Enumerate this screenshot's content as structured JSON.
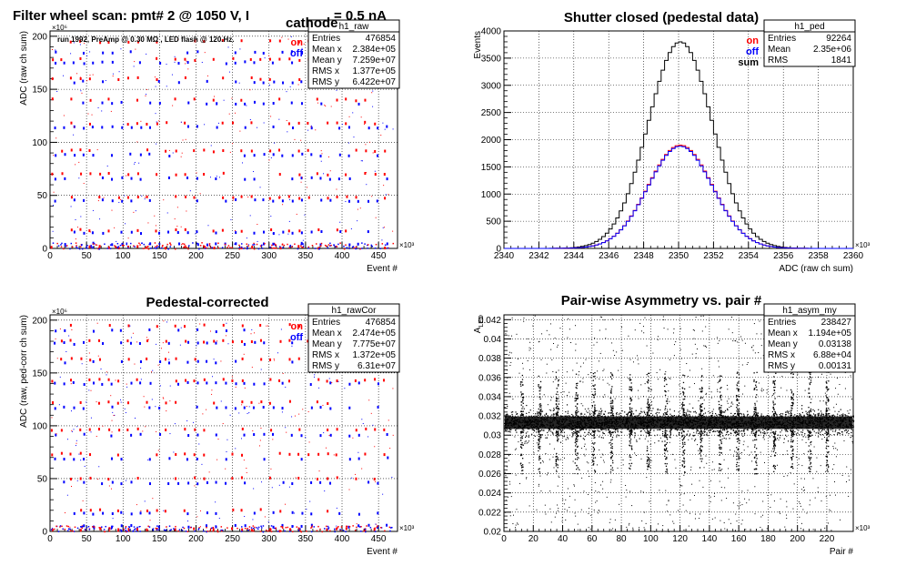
{
  "colors": {
    "on": "#ff0000",
    "off": "#0000ff",
    "sum": "#000000",
    "grid": "#000000"
  },
  "chart_data": [
    {
      "id": "raw",
      "type": "scatter",
      "title": "Filter wheel scan: pmt#   2 @  1050 V, I",
      "title_sub": "cathode",
      "title_tail": "= 0.5 nA",
      "note": "run 1992, PreAmp @ 0.30 MΩ , LED flash @  120.Hz.",
      "xlabel": "Event #",
      "ylabel": "ADC (raw ch sum)",
      "x_exp": "×10³",
      "y_exp": "×10⁶",
      "xlim": [
        0,
        476
      ],
      "ylim": [
        0,
        205
      ],
      "xticks": [
        0,
        50,
        100,
        150,
        200,
        250,
        300,
        350,
        400,
        450
      ],
      "yticks": [
        0,
        50,
        100,
        150,
        200
      ],
      "legend": [
        "on",
        "off"
      ],
      "stats": {
        "name": "h1_raw",
        "rows": [
          [
            "Entries",
            "476854"
          ],
          [
            "Mean x",
            "2.384e+05"
          ],
          [
            "Mean y",
            "7.259e+07"
          ],
          [
            "RMS x",
            "1.377e+05"
          ],
          [
            "RMS y",
            "6.422e+07"
          ]
        ]
      },
      "levels_on": [
        1,
        17,
        48,
        70,
        92,
        118,
        140,
        160,
        178,
        195
      ],
      "levels_off": [
        4,
        15,
        45,
        66,
        88,
        114,
        137,
        157,
        175,
        185
      ]
    },
    {
      "id": "ped",
      "type": "line",
      "title": "Shutter closed (pedestal data)",
      "xlabel": "ADC (raw ch sum)",
      "ylabel": "Events",
      "x_exp": "×10³",
      "xlim": [
        2340,
        2360
      ],
      "ylim": [
        0,
        4000
      ],
      "xticks": [
        2340,
        2342,
        2344,
        2346,
        2348,
        2350,
        2352,
        2354,
        2356,
        2358,
        2360
      ],
      "yticks": [
        0,
        500,
        1000,
        1500,
        2000,
        2500,
        3000,
        3500,
        4000
      ],
      "legend": [
        "on",
        "off",
        "sum"
      ],
      "stats": {
        "name": "h1_ped",
        "rows": [
          [
            "Entries",
            "92264"
          ],
          [
            "Mean",
            "2.35e+06"
          ],
          [
            "RMS",
            "1841"
          ]
        ]
      },
      "series": [
        {
          "name": "sum",
          "mean": 2350.1,
          "sigma": 1.84,
          "peak": 3800
        },
        {
          "name": "on",
          "mean": 2350.1,
          "sigma": 1.84,
          "peak": 1900
        },
        {
          "name": "off",
          "mean": 2350.1,
          "sigma": 1.84,
          "peak": 1880
        }
      ]
    },
    {
      "id": "rawcor",
      "type": "scatter",
      "title": "Pedestal-corrected",
      "xlabel": "Event #",
      "ylabel": "ADC (raw, ped-corr ch sum)",
      "x_exp": "×10³",
      "y_exp": "×10⁶",
      "xlim": [
        0,
        476
      ],
      "ylim": [
        0,
        205
      ],
      "xticks": [
        0,
        50,
        100,
        150,
        200,
        250,
        300,
        350,
        400,
        450
      ],
      "yticks": [
        0,
        50,
        100,
        150,
        200
      ],
      "legend": [
        "on",
        "off"
      ],
      "stats": {
        "name": "h1_rawCor",
        "rows": [
          [
            "Entries",
            "476854"
          ],
          [
            "Mean x",
            "2.474e+05"
          ],
          [
            "Mean y",
            "7.775e+07"
          ],
          [
            "RMS x",
            "1.372e+05"
          ],
          [
            "RMS y",
            "6.31e+07"
          ]
        ]
      },
      "levels_on": [
        2,
        20,
        50,
        73,
        96,
        122,
        143,
        163,
        180,
        195
      ],
      "levels_off": [
        5,
        17,
        46,
        69,
        91,
        117,
        140,
        160,
        178,
        190
      ]
    },
    {
      "id": "asym",
      "type": "scatter",
      "title": "Pair-wise Asymmetry vs. pair #",
      "xlabel": "Pair #",
      "ylabel": "A",
      "ylabel_sub": "LED",
      "x_exp": "×10³",
      "xlim": [
        0,
        238
      ],
      "ylim": [
        0.02,
        0.0425
      ],
      "xticks": [
        0,
        20,
        40,
        60,
        80,
        100,
        120,
        140,
        160,
        180,
        200,
        220
      ],
      "yticks": [
        0.02,
        0.022,
        0.024,
        0.026,
        0.028,
        0.03,
        0.032,
        0.034,
        0.036,
        0.038,
        0.04,
        0.042
      ],
      "stats": {
        "name": "h1_asym_my",
        "rows": [
          [
            "Entries",
            "238427"
          ],
          [
            "Mean x",
            "1.194e+05"
          ],
          [
            "Mean y",
            "0.03138"
          ],
          [
            "RMS x",
            "6.88e+04"
          ],
          [
            "RMS y",
            "0.00131"
          ]
        ]
      },
      "band_center": 0.0313,
      "band_halfwidth": 0.0011,
      "spike_pairs": [
        12,
        24,
        36,
        49,
        61,
        73,
        86,
        98,
        110,
        122,
        134,
        147,
        159,
        171,
        184,
        196,
        208,
        220
      ]
    }
  ]
}
